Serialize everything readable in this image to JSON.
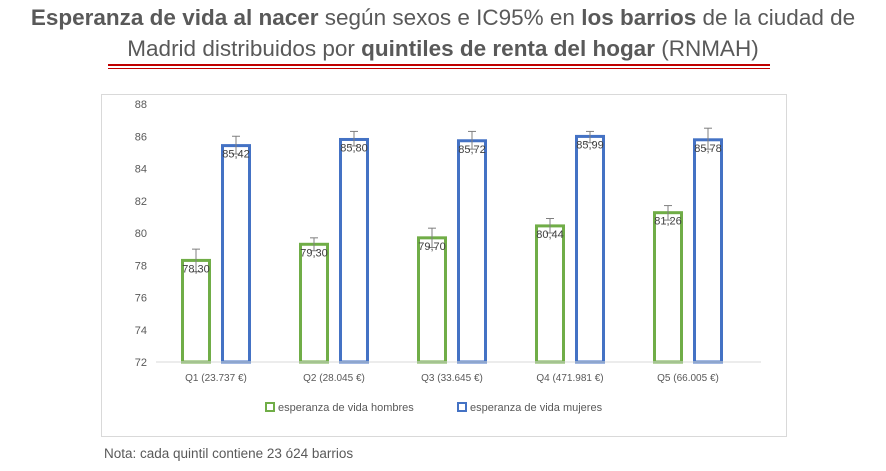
{
  "title": {
    "line1_bold_a": "Esperanza de vida al nacer",
    "line1_normal_a": " según sexos e IC95% en ",
    "line1_bold_b": "los barrios",
    "line1_normal_b": " de la ciudad de",
    "line2_normal_a": "Madrid distribuidos por ",
    "line2_bold": "quintiles de renta del hogar",
    "line2_normal_b": " (RNMAH)"
  },
  "note": "Nota: cada quintil contiene 23 ó24 barrios",
  "chart_data": {
    "type": "bar",
    "categories": [
      "Q1 (23.737 €)",
      "Q2 (28.045 €)",
      "Q3 (33.645 €)",
      "Q4 (471.981 €)",
      "Q5 (66.005 €)"
    ],
    "ylim": [
      72,
      88
    ],
    "yticks": [
      72,
      74,
      76,
      78,
      80,
      82,
      84,
      86,
      88
    ],
    "grid": false,
    "legend_position": "bottom",
    "series": [
      {
        "name": "esperanza de vida hombres",
        "color": "#70ad47",
        "values": [
          78.3,
          79.3,
          79.7,
          80.44,
          81.26
        ],
        "labels": [
          "78,30",
          "79,30",
          "79,70",
          "80,44",
          "81,26"
        ],
        "ci_low": [
          77.6,
          78.9,
          79.1,
          80.0,
          80.8
        ],
        "ci_high": [
          79.0,
          79.7,
          80.3,
          80.9,
          81.7
        ]
      },
      {
        "name": "esperanza de vida mujeres",
        "color": "#4472c4",
        "values": [
          85.42,
          85.8,
          85.72,
          85.99,
          85.78
        ],
        "labels": [
          "85,42",
          "85,80",
          "85,72",
          "85,99",
          "85,78"
        ],
        "ci_low": [
          84.9,
          85.4,
          85.2,
          85.6,
          85.2
        ],
        "ci_high": [
          86.0,
          86.3,
          86.3,
          86.3,
          86.5
        ]
      }
    ]
  }
}
